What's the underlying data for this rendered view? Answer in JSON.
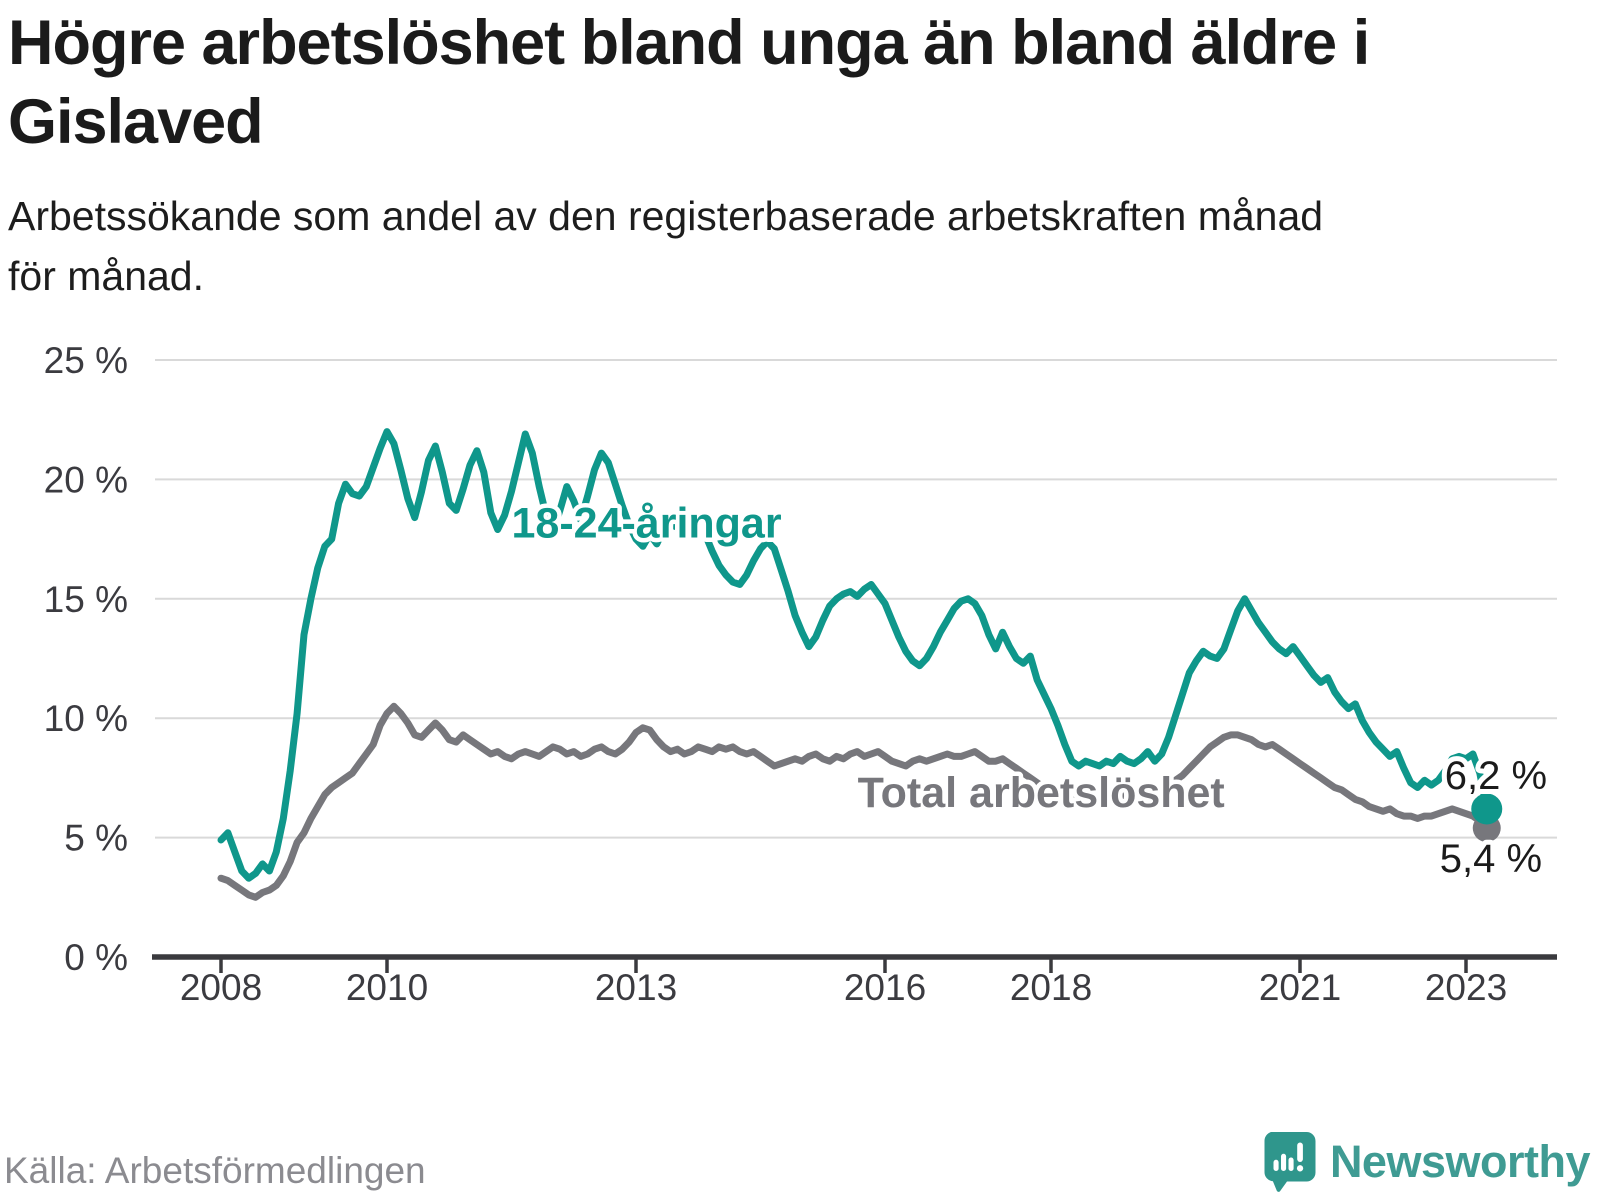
{
  "header": {
    "title_line1": "Högre arbetslöshet bland unga än bland äldre i",
    "title_line2": "Gislaved",
    "subtitle_line1": "Arbetssökande som andel av den registerbaserade arbetskraften månad",
    "subtitle_line2": "för månad."
  },
  "footer": {
    "source": "Källa: Arbetsförmedlingen",
    "brand_name": "Newsworthy",
    "brand_icon": "newsworthy-speech-bubble-bar-chart-icon"
  },
  "colors": {
    "youth": "#0f978b",
    "total": "#77777c",
    "grid": "#d9d9d9",
    "axis": "#3a3a3e",
    "tick_text": "#3b3b40",
    "title_text": "#1b1b1b",
    "end_label_text": "#1b1b1b",
    "source_text": "#8b8b90",
    "brand_teal": "#3f9b93",
    "background": "#ffffff"
  },
  "chart_data": {
    "type": "line",
    "title": "Högre arbetslöshet bland unga än bland äldre i Gislaved",
    "subtitle": "Arbetssökande som andel av den registerbaserade arbetskraften månad för månad.",
    "x_frequency": "monthly",
    "x_start": "2008-01",
    "x_end": "2023-04",
    "x_start_year": 2008,
    "x_tick_years": [
      2008,
      2010,
      2013,
      2016,
      2018,
      2021,
      2023
    ],
    "x_tick_labels": [
      "2008",
      "2010",
      "2013",
      "2016",
      "2018",
      "2021",
      "2023"
    ],
    "y_ticks": [
      0,
      5,
      10,
      15,
      20,
      25
    ],
    "y_tick_suffix": " %",
    "ylim": [
      0,
      25
    ],
    "grid": "horizontal",
    "legend_position": "inline-labels",
    "series": [
      {
        "name": "18-24-åringar",
        "color": "#0f978b",
        "end_label": "6,2 %",
        "end_value": 6.2,
        "values": [
          4.9,
          5.2,
          4.4,
          3.6,
          3.3,
          3.5,
          3.9,
          3.6,
          4.4,
          5.8,
          7.8,
          10.2,
          13.5,
          15.0,
          16.3,
          17.2,
          17.5,
          19.0,
          19.8,
          19.4,
          19.3,
          19.7,
          20.5,
          21.3,
          22.0,
          21.5,
          20.4,
          19.2,
          18.4,
          19.5,
          20.8,
          21.4,
          20.3,
          19.0,
          18.7,
          19.6,
          20.6,
          21.2,
          20.3,
          18.6,
          17.9,
          18.5,
          19.5,
          20.7,
          21.9,
          21.1,
          19.7,
          18.5,
          17.8,
          18.7,
          19.7,
          19.1,
          18.3,
          19.3,
          20.4,
          21.1,
          20.7,
          19.8,
          18.9,
          18.1,
          17.5,
          17.2,
          17.7,
          17.3,
          17.9,
          18.1,
          18.0,
          17.8,
          18.1,
          18.4,
          17.7,
          17.0,
          16.4,
          16.0,
          15.7,
          15.6,
          16.0,
          16.6,
          17.1,
          17.4,
          17.1,
          16.2,
          15.3,
          14.3,
          13.6,
          13.0,
          13.4,
          14.1,
          14.7,
          15.0,
          15.2,
          15.3,
          15.1,
          15.4,
          15.6,
          15.2,
          14.8,
          14.1,
          13.4,
          12.8,
          12.4,
          12.2,
          12.5,
          13.0,
          13.6,
          14.1,
          14.6,
          14.9,
          15.0,
          14.8,
          14.3,
          13.5,
          12.9,
          13.6,
          13.0,
          12.5,
          12.3,
          12.6,
          11.6,
          11.0,
          10.4,
          9.7,
          8.9,
          8.2,
          8.0,
          8.2,
          8.1,
          8.0,
          8.2,
          8.1,
          8.4,
          8.2,
          8.1,
          8.3,
          8.6,
          8.2,
          8.5,
          9.2,
          10.1,
          11.0,
          11.9,
          12.4,
          12.8,
          12.6,
          12.5,
          12.9,
          13.7,
          14.5,
          15.0,
          14.5,
          14.0,
          13.6,
          13.2,
          12.9,
          12.7,
          13.0,
          12.6,
          12.2,
          11.8,
          11.5,
          11.7,
          11.1,
          10.7,
          10.4,
          10.6,
          9.9,
          9.4,
          9.0,
          8.7,
          8.4,
          8.6,
          7.9,
          7.3,
          7.1,
          7.4,
          7.2,
          7.4,
          7.8,
          8.3,
          8.4,
          8.3,
          8.5,
          7.7,
          6.2
        ]
      },
      {
        "name": "Total arbetslöshet",
        "color": "#77777c",
        "end_label": "5,4 %",
        "end_value": 5.4,
        "values": [
          3.3,
          3.2,
          3.0,
          2.8,
          2.6,
          2.5,
          2.7,
          2.8,
          3.0,
          3.4,
          4.0,
          4.8,
          5.2,
          5.8,
          6.3,
          6.8,
          7.1,
          7.3,
          7.5,
          7.7,
          8.1,
          8.5,
          8.9,
          9.7,
          10.2,
          10.5,
          10.2,
          9.8,
          9.3,
          9.2,
          9.5,
          9.8,
          9.5,
          9.1,
          9.0,
          9.3,
          9.1,
          8.9,
          8.7,
          8.5,
          8.6,
          8.4,
          8.3,
          8.5,
          8.6,
          8.5,
          8.4,
          8.6,
          8.8,
          8.7,
          8.5,
          8.6,
          8.4,
          8.5,
          8.7,
          8.8,
          8.6,
          8.5,
          8.7,
          9.0,
          9.4,
          9.6,
          9.5,
          9.1,
          8.8,
          8.6,
          8.7,
          8.5,
          8.6,
          8.8,
          8.7,
          8.6,
          8.8,
          8.7,
          8.8,
          8.6,
          8.5,
          8.6,
          8.4,
          8.2,
          8.0,
          8.1,
          8.2,
          8.3,
          8.2,
          8.4,
          8.5,
          8.3,
          8.2,
          8.4,
          8.3,
          8.5,
          8.6,
          8.4,
          8.5,
          8.6,
          8.4,
          8.2,
          8.1,
          8.0,
          8.2,
          8.3,
          8.2,
          8.3,
          8.4,
          8.5,
          8.4,
          8.4,
          8.5,
          8.6,
          8.4,
          8.2,
          8.2,
          8.3,
          8.1,
          7.9,
          7.7,
          7.5,
          7.3,
          7.1,
          7.0,
          6.9,
          6.8,
          6.7,
          6.6,
          6.7,
          6.6,
          6.5,
          6.6,
          6.6,
          6.7,
          6.8,
          6.8,
          6.9,
          7.0,
          6.9,
          7.0,
          7.2,
          7.4,
          7.6,
          7.9,
          8.2,
          8.5,
          8.8,
          9.0,
          9.2,
          9.3,
          9.3,
          9.2,
          9.1,
          8.9,
          8.8,
          8.9,
          8.7,
          8.5,
          8.3,
          8.1,
          7.9,
          7.7,
          7.5,
          7.3,
          7.1,
          7.0,
          6.8,
          6.6,
          6.5,
          6.3,
          6.2,
          6.1,
          6.2,
          6.0,
          5.9,
          5.9,
          5.8,
          5.9,
          5.9,
          6.0,
          6.1,
          6.2,
          6.1,
          6.0,
          5.9,
          5.7,
          5.4
        ]
      }
    ],
    "annotations": [
      {
        "text": "18-24-åringar",
        "series_index": 0,
        "x_year": 2011.5,
        "y_value": 18.2
      },
      {
        "text": "Total arbetslöshet",
        "series_index": 1,
        "x_year": 2015.67,
        "y_value": 6.9
      }
    ]
  }
}
